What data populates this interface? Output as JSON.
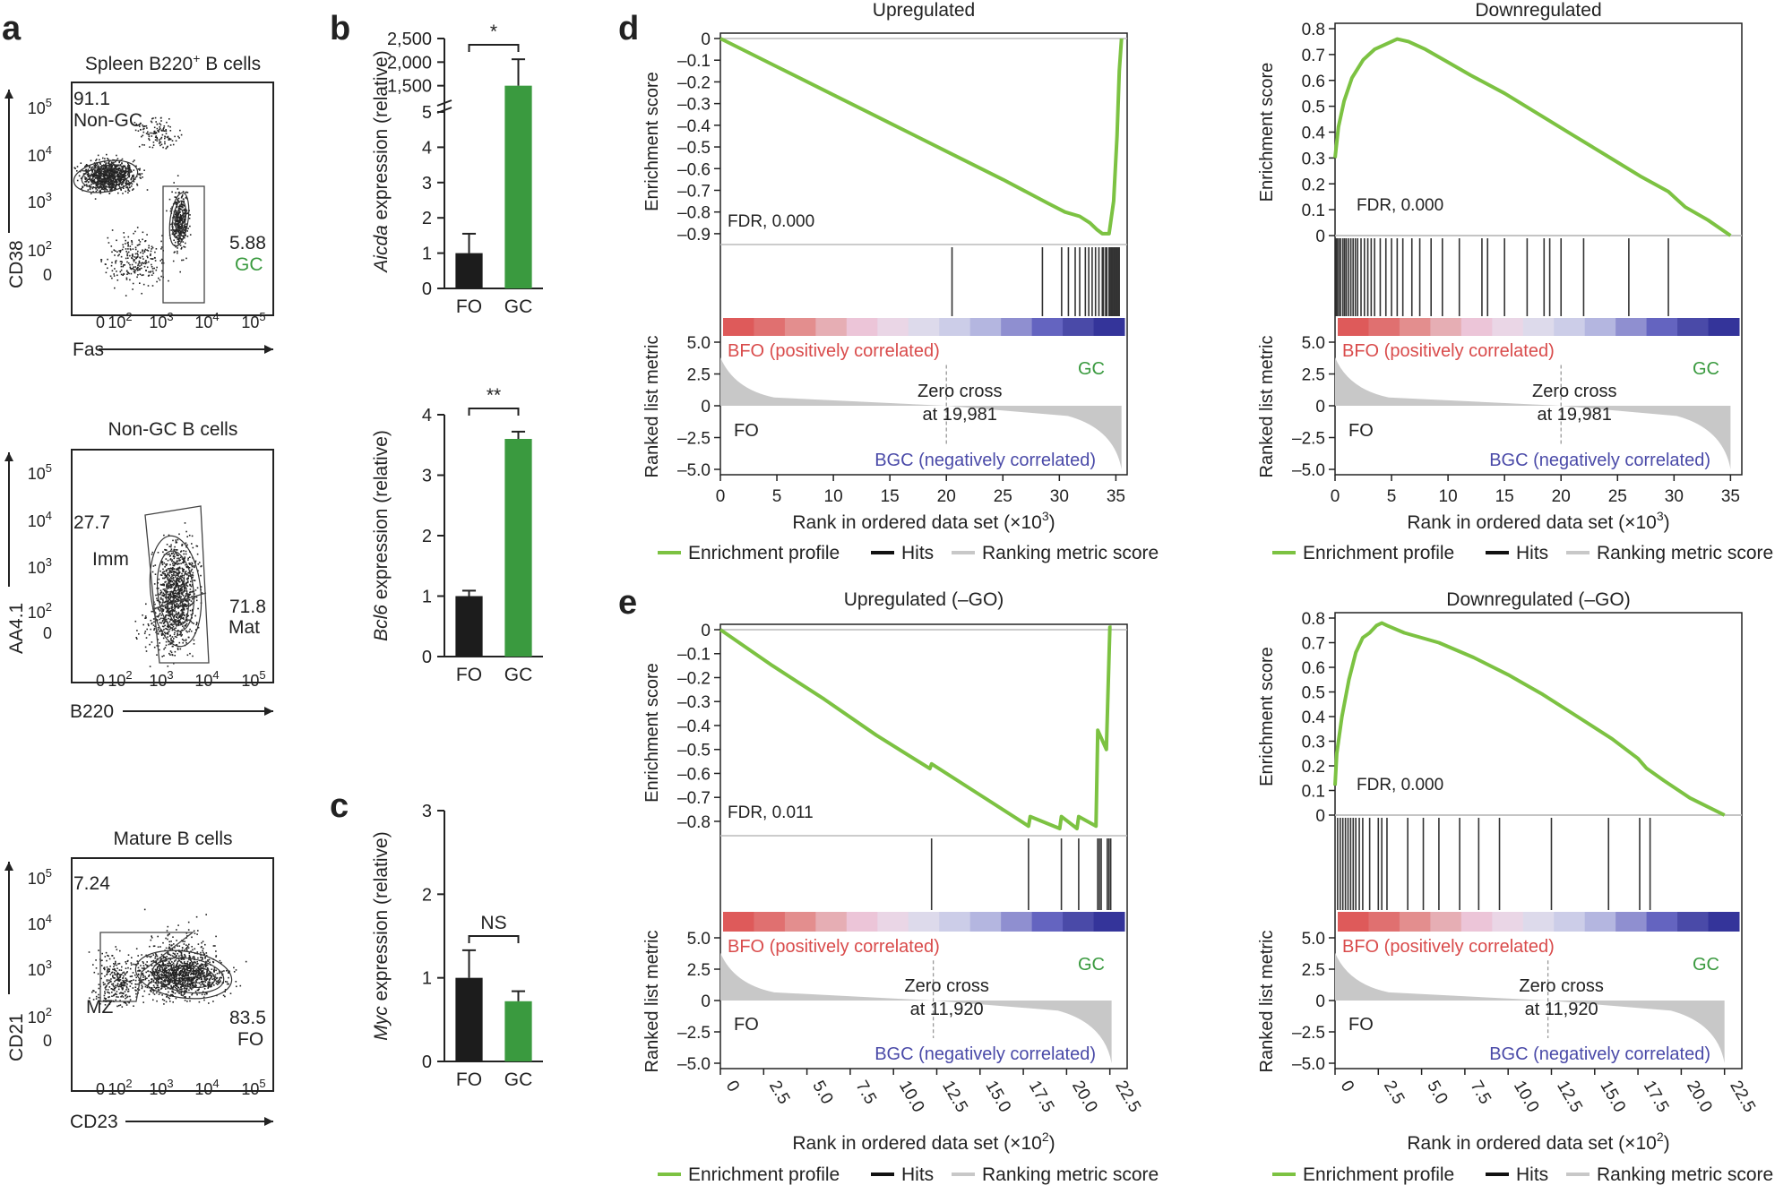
{
  "panel_letters": [
    "a",
    "b",
    "c",
    "d",
    "e"
  ],
  "colors": {
    "ink": "#222222",
    "green": "#3a9a3f",
    "profile": "#7cc242",
    "hitline": "#333333",
    "ranked": "#c8c8c8",
    "red_text": "#d94b4b",
    "blue_text": "#4a4aa8",
    "fo_bar": "#1c1c1c",
    "gc_bar": "#3a9a3f"
  },
  "flow": {
    "p1": {
      "title": "Spleen B220",
      "title_sup": "+",
      "title_tail": " B cells",
      "xlabel": "Fas",
      "ylabel": "CD38",
      "ticks": [
        "0",
        "10",
        "10",
        "10",
        "10"
      ],
      "tick_sups": [
        "",
        "2",
        "3",
        "4",
        "5"
      ],
      "gates": [
        {
          "value": "91.1",
          "label": "Non-GC",
          "color": "#222222"
        },
        {
          "value": "5.88",
          "label": "GC",
          "color": "#3a9a3f"
        }
      ]
    },
    "p2": {
      "title": "Non-GC B cells",
      "xlabel": "B220",
      "ylabel": "AA4.1",
      "gates": [
        {
          "value": "27.7",
          "label": "Imm"
        },
        {
          "value": "71.8",
          "label": "Mat"
        }
      ]
    },
    "p3": {
      "title": "Mature B cells",
      "xlabel": "CD23",
      "ylabel": "CD21",
      "gates": [
        {
          "value": "7.24",
          "label": "MZ"
        },
        {
          "value": "83.5",
          "label": "FO"
        }
      ]
    }
  },
  "chart_data": [
    {
      "id": "b-aicda",
      "type": "bar",
      "categories": [
        "FO",
        "GC"
      ],
      "values": [
        1.0,
        1500
      ],
      "errors": [
        0.55,
        560
      ],
      "ylabel_italic": "Aicda",
      "ylabel_tail": " expression (relative)",
      "broken_axis": {
        "lower": [
          0,
          5
        ],
        "upper": [
          1000,
          2500
        ]
      },
      "yticks_lower": [
        "0",
        "1",
        "2",
        "3",
        "4",
        "5"
      ],
      "yticks_upper": [
        "1,500",
        "2,000",
        "2,500"
      ],
      "significance": "*"
    },
    {
      "id": "b-bcl6",
      "type": "bar",
      "categories": [
        "FO",
        "GC"
      ],
      "values": [
        1.0,
        3.6
      ],
      "errors": [
        0.09,
        0.12
      ],
      "ylabel_italic": "Bcl6",
      "ylabel_tail": " expression (relative)",
      "ylim": [
        0,
        4
      ],
      "yticks": [
        "0",
        "1",
        "2",
        "3",
        "4"
      ],
      "significance": "**"
    },
    {
      "id": "c-myc",
      "type": "bar",
      "categories": [
        "FO",
        "GC"
      ],
      "values": [
        1.0,
        0.72
      ],
      "errors": [
        0.33,
        0.12
      ],
      "ylabel_italic": "Myc",
      "ylabel_tail": " expression (relative)",
      "ylim": [
        0,
        3
      ],
      "yticks": [
        "0",
        "1",
        "2",
        "3"
      ],
      "significance": "NS"
    },
    {
      "id": "d-up",
      "type": "line",
      "title": "Upregulated",
      "ylabel": "Enrichment score",
      "ylim": [
        -0.95,
        0
      ],
      "yticks": [
        0,
        -0.1,
        -0.2,
        -0.3,
        -0.4,
        -0.5,
        -0.6,
        -0.7,
        -0.8,
        -0.9
      ],
      "ytick_labels": [
        "0",
        "–0.1",
        "–0.2",
        "–0.3",
        "–0.4",
        "–0.5",
        "–0.6",
        "–0.7",
        "–0.8",
        "–0.9"
      ],
      "xmax": 36,
      "xticks": [
        0,
        5,
        10,
        15,
        20,
        25,
        30,
        35
      ],
      "xtick_labels": [
        "0",
        "5",
        "10",
        "15",
        "20",
        "25",
        "30",
        "35"
      ],
      "xlabel": "Rank in ordered data set (×10",
      "xlabel_sup": "3",
      "fdr": "FDR, 0.000",
      "x": [
        0,
        5,
        10,
        15,
        20,
        25,
        29,
        30.5,
        31.8,
        32.7,
        33.3,
        33.8,
        34.4,
        34.8,
        35.1,
        35.3,
        35.5
      ],
      "y": [
        0,
        -0.13,
        -0.26,
        -0.39,
        -0.52,
        -0.65,
        -0.76,
        -0.8,
        -0.82,
        -0.85,
        -0.88,
        -0.9,
        -0.9,
        -0.75,
        -0.45,
        -0.15,
        0
      ],
      "hits": [
        20.5,
        28.5,
        30.2,
        30.8,
        31.4,
        31.8,
        32.3,
        32.6,
        32.9,
        33.2,
        33.5,
        33.8,
        33.9,
        34.1,
        34.2,
        34.4,
        34.5,
        34.6,
        34.7,
        34.8,
        34.9,
        35.0,
        35.1,
        35.2,
        35.3
      ],
      "zero_cross": 20,
      "zero_cross_label": "Zero cross",
      "zero_cross_value": "at 19,981",
      "pos_label": "BFO (positively correlated)",
      "neg_label": "BGC (negatively correlated)",
      "gc_label": "GC",
      "fo_label": "FO",
      "ranked_ylabel": "Ranked list metric",
      "ranked_yticks": [
        "5.0",
        "2.5",
        "0",
        "–2.5",
        "–5.0"
      ],
      "xtick_rotate": false
    },
    {
      "id": "d-down",
      "type": "line",
      "title": "Downregulated",
      "ylabel": "Enrichment score",
      "ylim": [
        0,
        0.8
      ],
      "yticks": [
        0.8,
        0.7,
        0.6,
        0.5,
        0.4,
        0.3,
        0.2,
        0.1,
        0
      ],
      "ytick_labels": [
        "0.8",
        "0.7",
        "0.6",
        "0.5",
        "0.4",
        "0.3",
        "0.2",
        "0.1",
        "0"
      ],
      "xmax": 36,
      "xticks": [
        0,
        5,
        10,
        15,
        20,
        25,
        30,
        35
      ],
      "xtick_labels": [
        "0",
        "5",
        "10",
        "15",
        "20",
        "25",
        "30",
        "35"
      ],
      "xlabel": "Rank in ordered data set (×10",
      "xlabel_sup": "3",
      "fdr": "FDR, 0.000",
      "x": [
        0,
        0.3,
        0.8,
        1.5,
        2.5,
        3.5,
        4.5,
        5.5,
        6.5,
        8,
        10,
        12,
        15,
        18,
        21,
        24,
        27,
        29.5,
        30,
        31,
        33,
        35
      ],
      "y": [
        0.3,
        0.42,
        0.52,
        0.61,
        0.68,
        0.72,
        0.74,
        0.76,
        0.75,
        0.72,
        0.67,
        0.62,
        0.55,
        0.47,
        0.39,
        0.31,
        0.23,
        0.17,
        0.15,
        0.11,
        0.06,
        0
      ],
      "hits": [
        0.1,
        0.2,
        0.35,
        0.5,
        0.7,
        0.85,
        1.0,
        1.2,
        1.4,
        1.6,
        1.8,
        2.0,
        2.3,
        2.6,
        2.9,
        3.2,
        3.5,
        4.0,
        4.5,
        5.0,
        5.5,
        6.0,
        6.8,
        7.5,
        8.5,
        9.5,
        11,
        13,
        13.5,
        15,
        17,
        18.5,
        19,
        20,
        22,
        26,
        29.5
      ],
      "zero_cross": 20,
      "zero_cross_label": "Zero cross",
      "zero_cross_value": "at 19,981",
      "pos_label": "BFO (positively correlated)",
      "neg_label": "BGC (negatively correlated)",
      "gc_label": "GC",
      "fo_label": "FO",
      "ranked_ylabel": "Ranked list metric",
      "ranked_yticks": [
        "5.0",
        "2.5",
        "0",
        "–2.5",
        "–5.0"
      ],
      "xtick_rotate": false
    },
    {
      "id": "e-up",
      "type": "line",
      "title": "Upregulated (–GO)",
      "ylabel": "Enrichment score",
      "ylim": [
        -0.86,
        0
      ],
      "yticks": [
        0,
        -0.1,
        -0.2,
        -0.3,
        -0.4,
        -0.5,
        -0.6,
        -0.7,
        -0.8
      ],
      "ytick_labels": [
        "0",
        "–0.1",
        "–0.2",
        "–0.3",
        "–0.4",
        "–0.5",
        "–0.6",
        "–0.7",
        "–0.8"
      ],
      "xmax": 23.5,
      "xticks": [
        0,
        2.5,
        5,
        7.5,
        10,
        12.5,
        15,
        17.5,
        20,
        22.5
      ],
      "xtick_labels": [
        "0",
        "2.5",
        "5.0",
        "7.5",
        "10.0",
        "12.5",
        "15.0",
        "17.5",
        "20.0",
        "22.5"
      ],
      "xlabel": "Rank in ordered data set (×10",
      "xlabel_sup": "2",
      "fdr": "FDR, 0.011",
      "x": [
        0,
        3,
        6,
        9,
        12.1,
        12.2,
        15,
        17.8,
        17.9,
        19.6,
        19.7,
        20.6,
        20.7,
        21.7,
        21.8,
        22.3,
        22.4,
        22.5,
        22.6
      ],
      "y": [
        0,
        -0.15,
        -0.29,
        -0.44,
        -0.58,
        -0.56,
        -0.69,
        -0.82,
        -0.78,
        -0.83,
        -0.78,
        -0.83,
        -0.78,
        -0.82,
        -0.42,
        -0.5,
        -0.25,
        0.01,
        0.01
      ],
      "hits": [
        12.2,
        17.8,
        19.7,
        20.7,
        21.8,
        21.9,
        22.0,
        22.35,
        22.45,
        22.55
      ],
      "zero_cross": 12.3,
      "zero_cross_label": "Zero cross",
      "zero_cross_value": "at 11,920",
      "pos_label": "BFO (positively correlated)",
      "neg_label": "BGC (negatively correlated)",
      "gc_label": "GC",
      "fo_label": "FO",
      "ranked_ylabel": "Ranked list metric",
      "ranked_yticks": [
        "5.0",
        "2.5",
        "0",
        "–2.5",
        "–5.0"
      ],
      "xtick_rotate": true
    },
    {
      "id": "e-down",
      "type": "line",
      "title": "Downregulated (–GO)",
      "ylabel": "Enrichment score",
      "ylim": [
        0,
        0.8
      ],
      "yticks": [
        0.8,
        0.7,
        0.6,
        0.5,
        0.4,
        0.3,
        0.2,
        0.1,
        0
      ],
      "ytick_labels": [
        "0.8",
        "0.7",
        "0.6",
        "0.5",
        "0.4",
        "0.3",
        "0.2",
        "0.1",
        "0"
      ],
      "xmax": 23.5,
      "xticks": [
        0,
        2.5,
        5,
        7.5,
        10,
        12.5,
        15,
        17.5,
        20,
        22.5
      ],
      "xtick_labels": [
        "0",
        "2.5",
        "5.0",
        "7.5",
        "10.0",
        "12.5",
        "15.0",
        "17.5",
        "20.0",
        "22.5"
      ],
      "xlabel": "Rank in ordered data set (×10",
      "xlabel_sup": "2",
      "fdr": "FDR, 0.000",
      "x": [
        0,
        0.1,
        0.4,
        0.8,
        1.2,
        1.6,
        2.0,
        2.4,
        2.7,
        3.0,
        4,
        5,
        6,
        8,
        10,
        12,
        14,
        16,
        17.5,
        18.0,
        19,
        20.5,
        22.5
      ],
      "y": [
        0.12,
        0.25,
        0.4,
        0.55,
        0.66,
        0.72,
        0.74,
        0.77,
        0.78,
        0.77,
        0.74,
        0.72,
        0.7,
        0.64,
        0.57,
        0.49,
        0.4,
        0.31,
        0.23,
        0.19,
        0.14,
        0.07,
        0
      ],
      "hits": [
        0.15,
        0.3,
        0.45,
        0.6,
        0.75,
        0.9,
        1.05,
        1.2,
        1.4,
        1.6,
        2.0,
        2.5,
        2.7,
        3.0,
        4.2,
        5.1,
        6.0,
        7.2,
        8.3,
        9.5,
        12.5,
        15.8,
        17.6,
        18.2
      ],
      "zero_cross": 12.3,
      "zero_cross_label": "Zero cross",
      "zero_cross_value": "at 11,920",
      "pos_label": "BFO (positively correlated)",
      "neg_label": "BGC (negatively correlated)",
      "gc_label": "GC",
      "fo_label": "FO",
      "ranked_ylabel": "Ranked list metric",
      "ranked_yticks": [
        "5.0",
        "2.5",
        "0",
        "–2.5",
        "–5.0"
      ],
      "xtick_rotate": true
    }
  ],
  "legend": {
    "profile": "Enrichment profile",
    "hits": "Hits",
    "ranking": "Ranking metric score"
  },
  "gsea_ranked_range": [
    -5,
    5
  ],
  "gsea_palette": [
    "#de5a5a",
    "#e07070",
    "#e38e8e",
    "#e6aeb4",
    "#ecc5d8",
    "#ead6e6",
    "#dddaeb",
    "#cccde8",
    "#b4b6e0",
    "#8f8fd0",
    "#6464c0",
    "#4a4aa8",
    "#34349a"
  ]
}
